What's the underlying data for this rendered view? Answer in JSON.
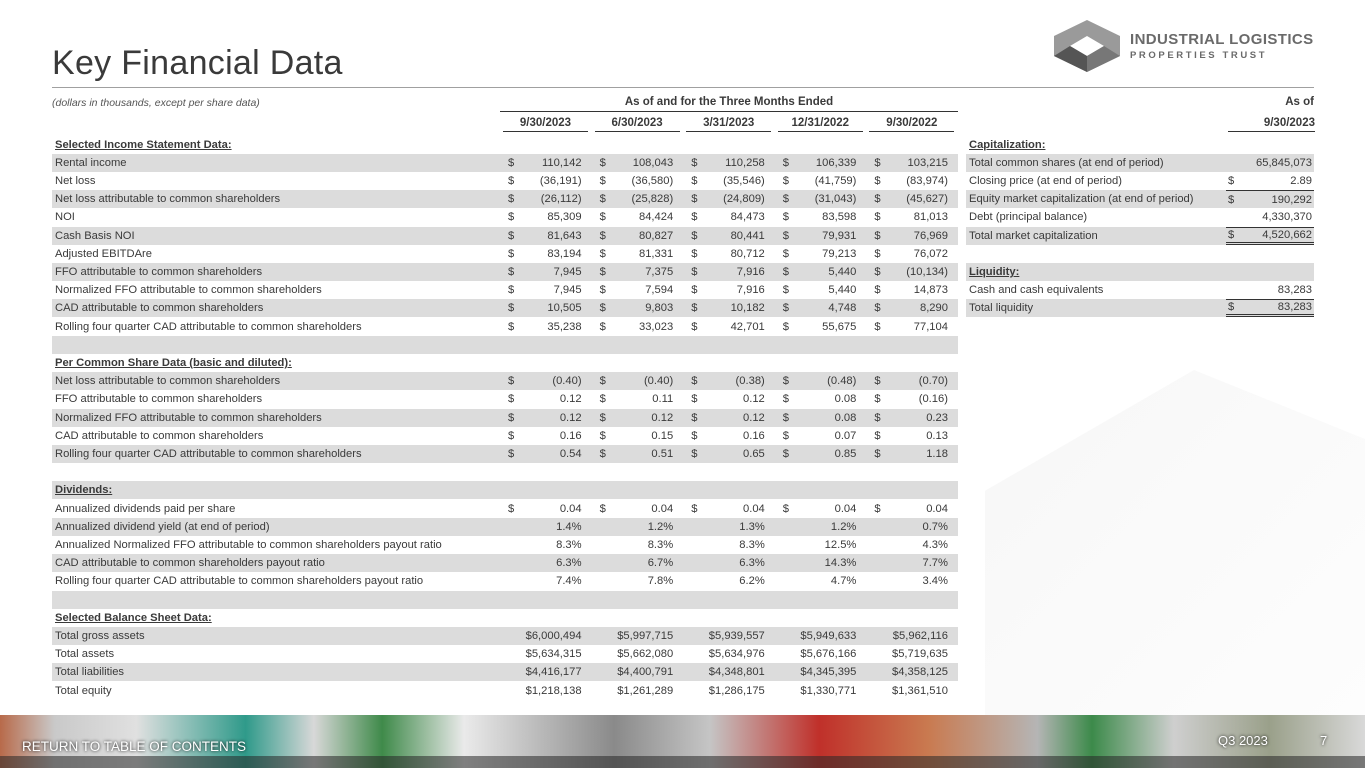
{
  "title": "Key Financial Data",
  "logo": {
    "line1": "INDUSTRIAL LOGISTICS",
    "line2": "PROPERTIES TRUST"
  },
  "note": "(dollars in thousands, except per share data)",
  "group_header": "As of and for the Three Months Ended",
  "periods": [
    "9/30/2023",
    "6/30/2023",
    "3/31/2023",
    "12/31/2022",
    "9/30/2022"
  ],
  "rows": [
    {
      "label": "Selected Income Statement Data:",
      "heading": true
    },
    {
      "label": "Rental income",
      "dollar": true,
      "values": [
        "110,142",
        "108,043",
        "110,258",
        "106,339",
        "103,215"
      ]
    },
    {
      "label": "Net loss",
      "dollar": true,
      "values": [
        "(36,191)",
        "(36,580)",
        "(35,546)",
        "(41,759)",
        "(83,974)"
      ]
    },
    {
      "label": "Net loss attributable to common shareholders",
      "dollar": true,
      "values": [
        "(26,112)",
        "(25,828)",
        "(24,809)",
        "(31,043)",
        "(45,627)"
      ]
    },
    {
      "label": "NOI",
      "dollar": true,
      "values": [
        "85,309",
        "84,424",
        "84,473",
        "83,598",
        "81,013"
      ]
    },
    {
      "label": "Cash Basis NOI",
      "dollar": true,
      "values": [
        "81,643",
        "80,827",
        "80,441",
        "79,931",
        "76,969"
      ]
    },
    {
      "label": "Adjusted EBITDAre",
      "dollar": true,
      "values": [
        "83,194",
        "81,331",
        "80,712",
        "79,213",
        "76,072"
      ]
    },
    {
      "label": "FFO attributable to common shareholders",
      "dollar": true,
      "values": [
        "7,945",
        "7,375",
        "7,916",
        "5,440",
        "(10,134)"
      ]
    },
    {
      "label": "Normalized FFO attributable to common shareholders",
      "dollar": true,
      "values": [
        "7,945",
        "7,594",
        "7,916",
        "5,440",
        "14,873"
      ]
    },
    {
      "label": "CAD attributable to common shareholders",
      "dollar": true,
      "values": [
        "10,505",
        "9,803",
        "10,182",
        "4,748",
        "8,290"
      ]
    },
    {
      "label": "Rolling four quarter CAD attributable to common shareholders",
      "dollar": true,
      "values": [
        "35,238",
        "33,023",
        "42,701",
        "55,675",
        "77,104"
      ]
    },
    {
      "label": ""
    },
    {
      "label": "Per Common Share Data (basic and diluted):",
      "heading": true
    },
    {
      "label": "Net loss attributable to common shareholders",
      "dollar": true,
      "values": [
        "(0.40)",
        "(0.40)",
        "(0.38)",
        "(0.48)",
        "(0.70)"
      ]
    },
    {
      "label": "FFO attributable to common shareholders",
      "dollar": true,
      "values": [
        "0.12",
        "0.11",
        "0.12",
        "0.08",
        "(0.16)"
      ]
    },
    {
      "label": "Normalized FFO attributable to common shareholders",
      "dollar": true,
      "values": [
        "0.12",
        "0.12",
        "0.12",
        "0.08",
        "0.23"
      ]
    },
    {
      "label": "CAD attributable to common shareholders",
      "dollar": true,
      "values": [
        "0.16",
        "0.15",
        "0.16",
        "0.07",
        "0.13"
      ]
    },
    {
      "label": "Rolling four quarter CAD attributable to common shareholders",
      "dollar": true,
      "values": [
        "0.54",
        "0.51",
        "0.65",
        "0.85",
        "1.18"
      ]
    },
    {
      "label": ""
    },
    {
      "label": "Dividends:",
      "heading": true
    },
    {
      "label": "Annualized dividends paid per share",
      "dollar": true,
      "values": [
        "0.04",
        "0.04",
        "0.04",
        "0.04",
        "0.04"
      ]
    },
    {
      "label": "Annualized dividend yield (at end of period)",
      "values": [
        "1.4%",
        "1.2%",
        "1.3%",
        "1.2%",
        "0.7%"
      ]
    },
    {
      "label": "Annualized Normalized FFO attributable to common shareholders payout ratio",
      "values": [
        "8.3%",
        "8.3%",
        "8.3%",
        "12.5%",
        "4.3%"
      ]
    },
    {
      "label": "CAD attributable to common shareholders payout ratio",
      "values": [
        "6.3%",
        "6.7%",
        "6.3%",
        "14.3%",
        "7.7%"
      ]
    },
    {
      "label": "Rolling four quarter CAD attributable to common shareholders payout ratio",
      "values": [
        "7.4%",
        "7.8%",
        "6.2%",
        "4.7%",
        "3.4%"
      ]
    },
    {
      "label": ""
    },
    {
      "label": "Selected Balance Sheet Data:",
      "heading": true
    },
    {
      "label": "Total gross assets",
      "values": [
        "$6,000,494",
        "$5,997,715",
        "$5,939,557",
        "$5,949,633",
        "$5,962,116"
      ]
    },
    {
      "label": "Total assets",
      "values": [
        "$5,634,315",
        "$5,662,080",
        "$5,634,976",
        "$5,676,166",
        "$5,719,635"
      ]
    },
    {
      "label": "Total liabilities",
      "values": [
        "$4,416,177",
        "$4,400,791",
        "$4,348,801",
        "$4,345,395",
        "$4,358,125"
      ]
    },
    {
      "label": "Total equity",
      "values": [
        "$1,218,138",
        "$1,261,289",
        "$1,286,175",
        "$1,330,771",
        "$1,361,510"
      ]
    }
  ],
  "right": {
    "as_of": "As of",
    "date": "9/30/2023",
    "rows": [
      {
        "label": "Capitalization:",
        "heading": true
      },
      {
        "label": "Total common shares (at end of period)",
        "value": "65,845,073"
      },
      {
        "label": "Closing price (at end of period)",
        "dollar": true,
        "value": "2.89"
      },
      {
        "label": "Equity market capitalization (at end of period)",
        "dollar": true,
        "value": "190,292",
        "underline": true
      },
      {
        "label": "Debt (principal balance)",
        "value": "4,330,370"
      },
      {
        "label": "Total market capitalization",
        "dollar": true,
        "value": "4,520,662",
        "underline": true,
        "double": true
      },
      {
        "label": ""
      },
      {
        "label": "Liquidity:",
        "heading": true
      },
      {
        "label": "Cash and cash equivalents",
        "value": "83,283"
      },
      {
        "label": "Total liquidity",
        "dollar": true,
        "value": "83,283",
        "underline": true,
        "double": true
      }
    ]
  },
  "footer": {
    "toc": "RETURN TO TABLE OF CONTENTS",
    "quarter": "Q3 2023",
    "page": "7"
  },
  "currency_symbol": "$"
}
